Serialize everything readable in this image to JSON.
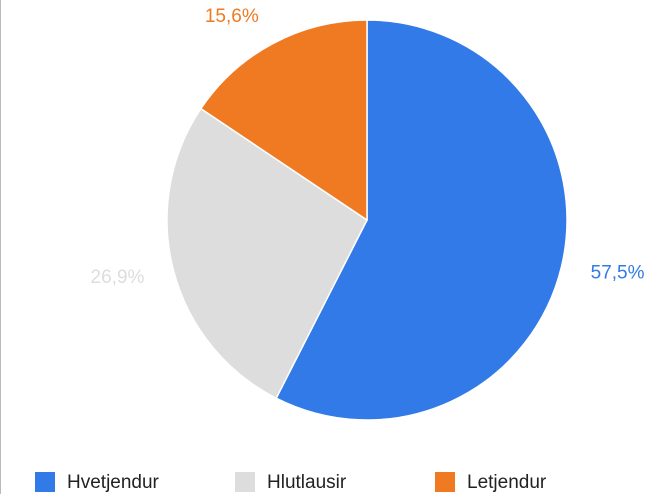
{
  "chart_data": {
    "type": "pie",
    "categories": [
      "Hvetjendur",
      "Hlutlausir",
      "Letjendur"
    ],
    "values": [
      57.5,
      26.9,
      15.6
    ],
    "value_labels": [
      "57,5%",
      "26,9%",
      "15,6%"
    ],
    "colors": [
      "#317ae7",
      "#dddddd",
      "#f07a22"
    ],
    "legend": "bottom"
  }
}
